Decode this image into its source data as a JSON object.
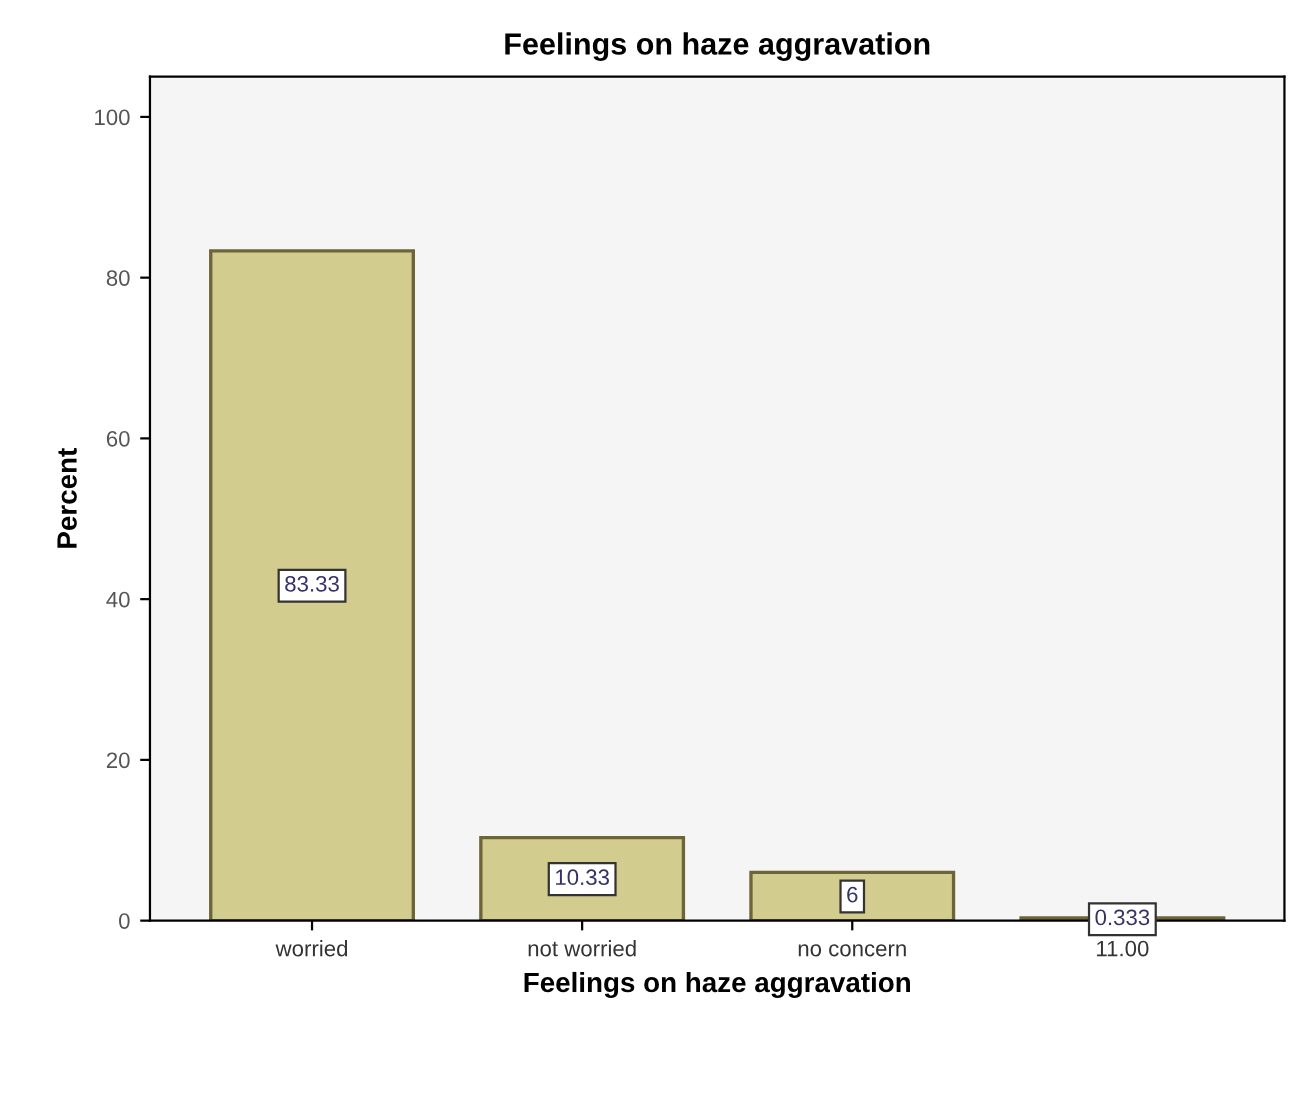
{
  "chart_data": {
    "type": "bar",
    "title": "Feelings on haze aggravation",
    "xlabel": "Feelings on haze aggravation",
    "ylabel": "Percent",
    "categories": [
      "worried",
      "not worried",
      "no concern",
      "11.00"
    ],
    "values": [
      83.33,
      10.33,
      6,
      0.333
    ],
    "color": "#d3cc8f",
    "ylim": [
      0,
      105
    ],
    "yticks": [
      0,
      20,
      40,
      60,
      80,
      100
    ],
    "data_labels": true,
    "grid": false,
    "legend": false
  }
}
